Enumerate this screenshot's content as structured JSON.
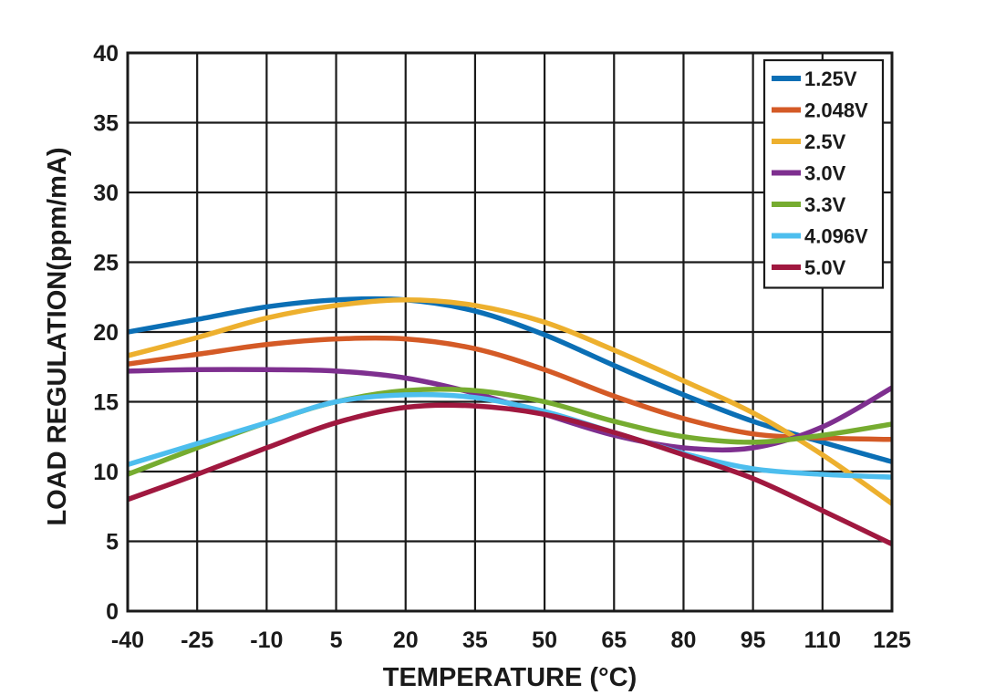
{
  "chart_data": {
    "type": "line",
    "xlabel": "TEMPERATURE (°C)",
    "ylabel": "LOAD REGULATION(ppm/mA)",
    "xlim": [
      -40,
      125
    ],
    "ylim": [
      0,
      40
    ],
    "x_ticks": [
      "-40",
      "-25",
      "-10",
      "5",
      "20",
      "35",
      "50",
      "65",
      "80",
      "95",
      "110",
      "125"
    ],
    "y_ticks": [
      "0",
      "5",
      "10",
      "15",
      "20",
      "25",
      "30",
      "35",
      "40"
    ],
    "grid": true,
    "legend_position": "top-right",
    "series": [
      {
        "name": "1.25V",
        "color": "#0b6fb5",
        "x": [
          -40,
          -25,
          -10,
          5,
          20,
          35,
          50,
          65,
          80,
          95,
          110,
          125
        ],
        "y": [
          20.0,
          20.9,
          21.8,
          22.3,
          22.3,
          21.5,
          19.8,
          17.6,
          15.5,
          13.6,
          12.1,
          10.7
        ]
      },
      {
        "name": "2.048V",
        "color": "#d45a26",
        "x": [
          -40,
          -25,
          -10,
          5,
          20,
          35,
          50,
          65,
          80,
          95,
          110,
          125
        ],
        "y": [
          17.7,
          18.4,
          19.1,
          19.5,
          19.5,
          18.8,
          17.3,
          15.4,
          13.8,
          12.7,
          12.4,
          12.3
        ]
      },
      {
        "name": "2.5V",
        "color": "#edb02e",
        "x": [
          -40,
          -25,
          -10,
          5,
          20,
          35,
          50,
          65,
          80,
          95,
          110,
          125
        ],
        "y": [
          18.3,
          19.6,
          21.0,
          21.9,
          22.3,
          21.9,
          20.7,
          18.7,
          16.5,
          14.2,
          11.2,
          7.7
        ]
      },
      {
        "name": "3.0V",
        "color": "#7e2f8f",
        "x": [
          -40,
          -25,
          -10,
          5,
          20,
          35,
          50,
          65,
          80,
          95,
          110,
          125
        ],
        "y": [
          17.2,
          17.3,
          17.3,
          17.2,
          16.7,
          15.6,
          14.1,
          12.6,
          11.7,
          11.7,
          13.2,
          16.0
        ]
      },
      {
        "name": "3.3V",
        "color": "#76ac30",
        "x": [
          -40,
          -25,
          -10,
          5,
          20,
          35,
          50,
          65,
          80,
          95,
          110,
          125
        ],
        "y": [
          9.8,
          11.7,
          13.5,
          15.0,
          15.8,
          15.8,
          15.0,
          13.6,
          12.5,
          12.1,
          12.6,
          13.4
        ]
      },
      {
        "name": "4.096V",
        "color": "#4dbeee",
        "x": [
          -40,
          -25,
          -10,
          5,
          20,
          35,
          50,
          65,
          80,
          95,
          110,
          125
        ],
        "y": [
          10.5,
          12.0,
          13.5,
          15.0,
          15.5,
          15.3,
          14.3,
          12.8,
          11.3,
          10.2,
          9.8,
          9.6
        ]
      },
      {
        "name": "5.0V",
        "color": "#a0183f",
        "x": [
          -40,
          -25,
          -10,
          5,
          20,
          35,
          50,
          65,
          80,
          95,
          110,
          125
        ],
        "y": [
          8.0,
          9.8,
          11.7,
          13.5,
          14.6,
          14.7,
          14.1,
          12.8,
          11.2,
          9.5,
          7.2,
          4.8
        ]
      }
    ]
  }
}
